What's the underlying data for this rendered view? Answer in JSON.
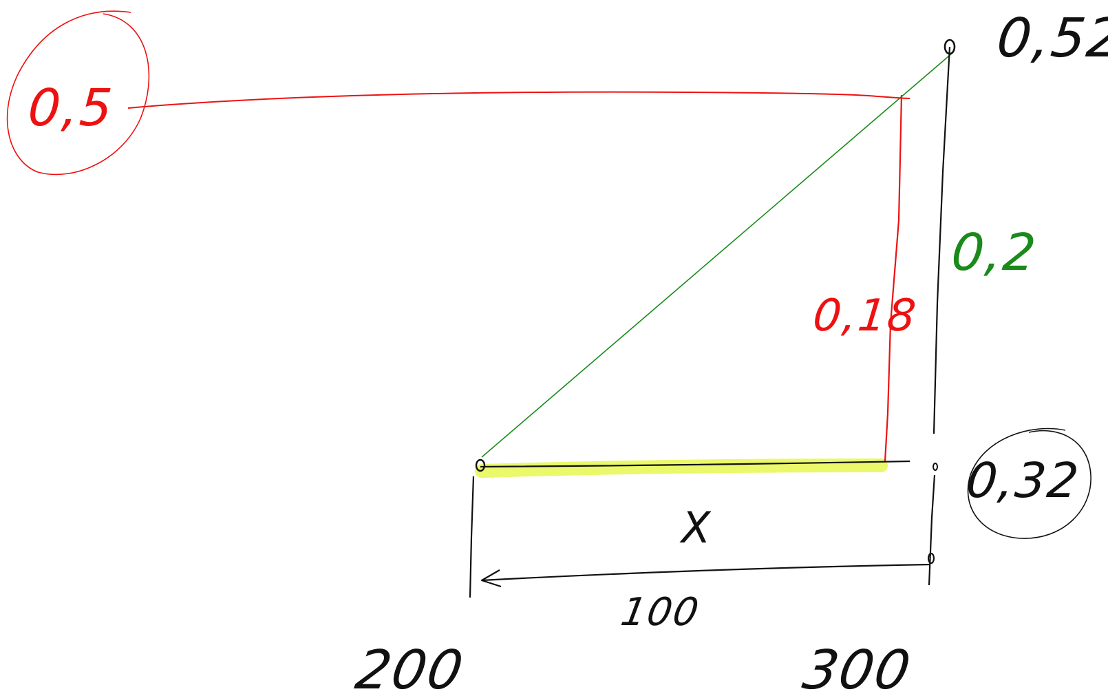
{
  "colors": {
    "ink": "#111111",
    "red": "#ee1111",
    "green": "#1a8a1a",
    "highlight": "#e8f75a"
  },
  "labels": {
    "top_right_value": "0,52",
    "circled_left_value": "0,5",
    "green_difference": "0,2",
    "red_difference": "0,18",
    "circled_right_value": "0,32",
    "unknown_span": "X",
    "span_width": "100",
    "x_left": "200",
    "x_right": "300"
  }
}
